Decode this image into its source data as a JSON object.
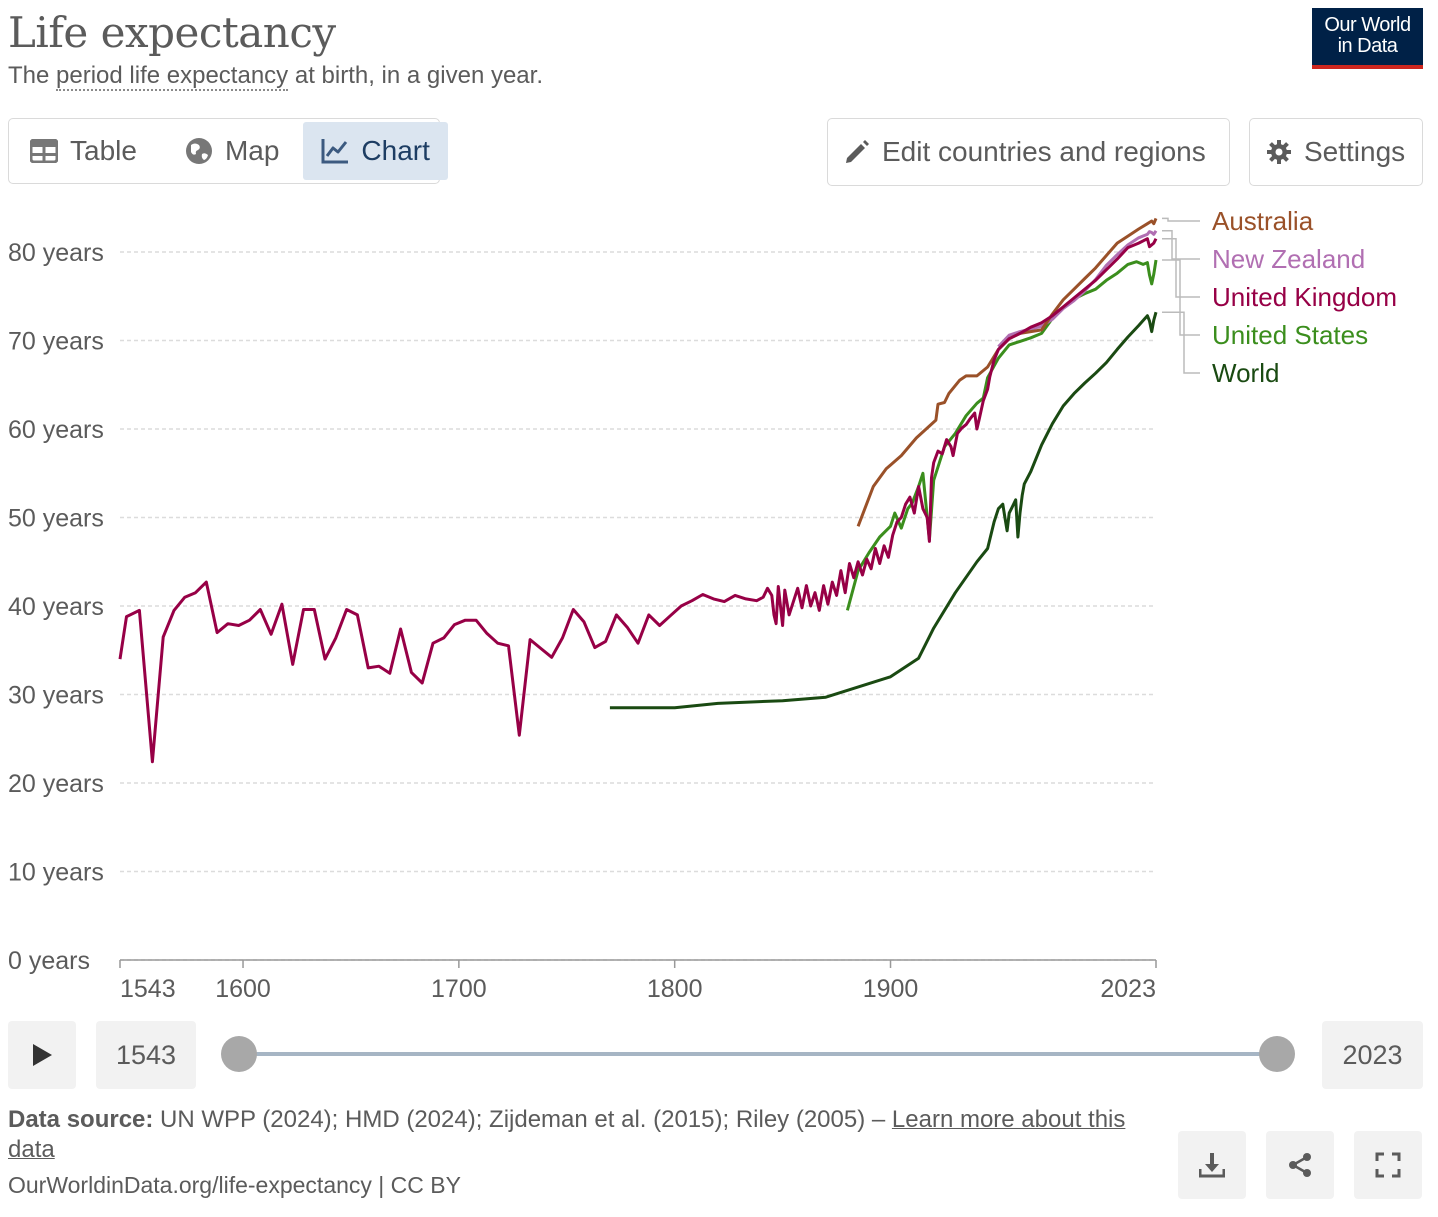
{
  "header": {
    "title": "Life expectancy",
    "subtitle_pre": "The ",
    "subtitle_link": "period life expectancy",
    "subtitle_post": " at birth, in a given year.",
    "logo_line1": "Our World",
    "logo_line2": "in Data"
  },
  "tabs": [
    {
      "label": "Table",
      "icon": "table-icon"
    },
    {
      "label": "Map",
      "icon": "globe-icon"
    },
    {
      "label": "Chart",
      "icon": "line-chart-icon",
      "active": true
    }
  ],
  "actions": {
    "edit_label": "Edit countries and regions",
    "settings_label": "Settings"
  },
  "timeline": {
    "start_year": "1543",
    "end_year": "2023",
    "play_icon": "play-icon"
  },
  "footer": {
    "source_label": "Data source:",
    "source_text": " UN WPP (2024); HMD (2024); Zijdeman et al. (2015); Riley (2005) – ",
    "learn_more": "Learn more about this data",
    "url": "OurWorldinData.org/life-expectancy | CC BY"
  },
  "colors": {
    "Australia": "#9a5129",
    "New Zealand": "#b16fb2",
    "United Kingdom": "#970046",
    "United States": "#3b8e1d",
    "World": "#1a4a12",
    "accent": "#dbe5f0",
    "brand": "#002147"
  },
  "chart_data": {
    "type": "line",
    "title": "",
    "xlabel": "",
    "ylabel": "",
    "xlim": [
      1543,
      2023
    ],
    "ylim": [
      0,
      80
    ],
    "y_ticks": [
      0,
      10,
      20,
      30,
      40,
      50,
      60,
      70,
      80
    ],
    "y_tick_labels": [
      "0 years",
      "10 years",
      "20 years",
      "30 years",
      "40 years",
      "50 years",
      "60 years",
      "70 years",
      "80 years"
    ],
    "x_tick_labels": [
      "1543",
      "1600",
      "1700",
      "1800",
      "1900",
      "2023"
    ],
    "x_ticks": [
      1543,
      1600,
      1700,
      1800,
      1900,
      2023
    ],
    "grid": "horizontal dashed",
    "legend": "right, end-of-line labels",
    "series": [
      {
        "name": "Australia",
        "points": [
          [
            1885,
            49
          ],
          [
            1892,
            53.5
          ],
          [
            1898,
            55.5
          ],
          [
            1905,
            57
          ],
          [
            1912,
            59
          ],
          [
            1921,
            61
          ],
          [
            1922,
            62.8
          ],
          [
            1925,
            63
          ],
          [
            1927,
            64
          ],
          [
            1932,
            65.5
          ],
          [
            1935,
            66
          ],
          [
            1940,
            66
          ],
          [
            1945,
            67
          ],
          [
            1950,
            69
          ],
          [
            1955,
            70.2
          ],
          [
            1960,
            70.8
          ],
          [
            1965,
            71
          ],
          [
            1970,
            71.2
          ],
          [
            1975,
            73
          ],
          [
            1980,
            74.6
          ],
          [
            1985,
            75.8
          ],
          [
            1990,
            77
          ],
          [
            1995,
            78.2
          ],
          [
            2000,
            79.6
          ],
          [
            2005,
            81
          ],
          [
            2010,
            81.8
          ],
          [
            2015,
            82.6
          ],
          [
            2019,
            83.2
          ],
          [
            2021,
            83.5
          ],
          [
            2022,
            83.2
          ],
          [
            2023,
            83.8
          ]
        ]
      },
      {
        "name": "New Zealand",
        "points": [
          [
            1950,
            69.3
          ],
          [
            1955,
            70.6
          ],
          [
            1960,
            71
          ],
          [
            1965,
            71.3
          ],
          [
            1970,
            71.6
          ],
          [
            1975,
            72.4
          ],
          [
            1980,
            73.6
          ],
          [
            1985,
            74.5
          ],
          [
            1990,
            75.6
          ],
          [
            1995,
            76.9
          ],
          [
            2000,
            78.5
          ],
          [
            2005,
            79.7
          ],
          [
            2010,
            80.8
          ],
          [
            2015,
            81.6
          ],
          [
            2019,
            82
          ],
          [
            2020,
            82.3
          ],
          [
            2021,
            82.2
          ],
          [
            2022,
            82
          ],
          [
            2023,
            82.4
          ]
        ]
      },
      {
        "name": "United Kingdom",
        "points": [
          [
            1543,
            34
          ],
          [
            1546,
            38.8
          ],
          [
            1552,
            39.5
          ],
          [
            1558,
            22.4
          ],
          [
            1563,
            36.5
          ],
          [
            1568,
            39.5
          ],
          [
            1573,
            41
          ],
          [
            1578,
            41.5
          ],
          [
            1583,
            42.7
          ],
          [
            1588,
            37
          ],
          [
            1593,
            38
          ],
          [
            1598,
            37.8
          ],
          [
            1603,
            38.4
          ],
          [
            1608,
            39.6
          ],
          [
            1613,
            36.8
          ],
          [
            1618,
            40.2
          ],
          [
            1623,
            33.4
          ],
          [
            1628,
            39.6
          ],
          [
            1633,
            39.6
          ],
          [
            1638,
            34
          ],
          [
            1643,
            36.4
          ],
          [
            1648,
            39.6
          ],
          [
            1653,
            39
          ],
          [
            1658,
            33
          ],
          [
            1663,
            33.2
          ],
          [
            1668,
            32.4
          ],
          [
            1673,
            37.4
          ],
          [
            1678,
            32.5
          ],
          [
            1683,
            31.3
          ],
          [
            1688,
            35.8
          ],
          [
            1693,
            36.4
          ],
          [
            1698,
            37.9
          ],
          [
            1703,
            38.4
          ],
          [
            1708,
            38.4
          ],
          [
            1713,
            36.9
          ],
          [
            1718,
            35.8
          ],
          [
            1723,
            35.5
          ],
          [
            1728,
            25.4
          ],
          [
            1733,
            36.2
          ],
          [
            1738,
            35.2
          ],
          [
            1743,
            34.2
          ],
          [
            1748,
            36.4
          ],
          [
            1753,
            39.6
          ],
          [
            1758,
            38.2
          ],
          [
            1763,
            35.3
          ],
          [
            1768,
            36
          ],
          [
            1773,
            39
          ],
          [
            1778,
            37.6
          ],
          [
            1783,
            35.8
          ],
          [
            1788,
            39
          ],
          [
            1793,
            37.8
          ],
          [
            1798,
            38.9
          ],
          [
            1803,
            40
          ],
          [
            1808,
            40.6
          ],
          [
            1813,
            41.3
          ],
          [
            1818,
            40.8
          ],
          [
            1823,
            40.5
          ],
          [
            1828,
            41.2
          ],
          [
            1833,
            40.8
          ],
          [
            1838,
            40.6
          ],
          [
            1841,
            41
          ],
          [
            1843,
            42
          ],
          [
            1845,
            41.2
          ],
          [
            1846,
            39
          ],
          [
            1847,
            38
          ],
          [
            1848,
            42.2
          ],
          [
            1850,
            37.8
          ],
          [
            1851,
            41.8
          ],
          [
            1853,
            39
          ],
          [
            1855,
            40.5
          ],
          [
            1857,
            42
          ],
          [
            1859,
            39.8
          ],
          [
            1861,
            42.3
          ],
          [
            1863,
            40
          ],
          [
            1865,
            41.5
          ],
          [
            1867,
            39.5
          ],
          [
            1869,
            42.3
          ],
          [
            1871,
            40.2
          ],
          [
            1873,
            42.7
          ],
          [
            1875,
            41.2
          ],
          [
            1877,
            44
          ],
          [
            1879,
            41.5
          ],
          [
            1881,
            44.8
          ],
          [
            1883,
            43.2
          ],
          [
            1885,
            45
          ],
          [
            1887,
            43.5
          ],
          [
            1889,
            45.3
          ],
          [
            1891,
            44.2
          ],
          [
            1893,
            46.5
          ],
          [
            1895,
            44.8
          ],
          [
            1897,
            46.8
          ],
          [
            1899,
            45.5
          ],
          [
            1901,
            48
          ],
          [
            1903,
            49.5
          ],
          [
            1905,
            50
          ],
          [
            1907,
            51.5
          ],
          [
            1909,
            52.3
          ],
          [
            1911,
            50.5
          ],
          [
            1913,
            53.5
          ],
          [
            1915,
            51
          ],
          [
            1917,
            50
          ],
          [
            1918,
            47.3
          ],
          [
            1919,
            54.5
          ],
          [
            1920,
            56.2
          ],
          [
            1922,
            57.5
          ],
          [
            1924,
            57.2
          ],
          [
            1926,
            58.8
          ],
          [
            1928,
            58
          ],
          [
            1929,
            57
          ],
          [
            1931,
            59.5
          ],
          [
            1933,
            60.1
          ],
          [
            1935,
            60.5
          ],
          [
            1937,
            61.2
          ],
          [
            1939,
            61.8
          ],
          [
            1940,
            60
          ],
          [
            1941,
            61
          ],
          [
            1943,
            63.2
          ],
          [
            1945,
            64.5
          ],
          [
            1946,
            65.9
          ],
          [
            1948,
            67.8
          ],
          [
            1950,
            69
          ],
          [
            1955,
            70.2
          ],
          [
            1960,
            70.8
          ],
          [
            1965,
            71.5
          ],
          [
            1970,
            72
          ],
          [
            1975,
            72.8
          ],
          [
            1980,
            73.8
          ],
          [
            1985,
            74.8
          ],
          [
            1990,
            75.8
          ],
          [
            1995,
            76.8
          ],
          [
            2000,
            78
          ],
          [
            2005,
            79.2
          ],
          [
            2010,
            80.5
          ],
          [
            2015,
            81
          ],
          [
            2019,
            81.5
          ],
          [
            2020,
            80.6
          ],
          [
            2021,
            80.8
          ],
          [
            2022,
            81
          ],
          [
            2023,
            81.5
          ]
        ]
      },
      {
        "name": "United States",
        "points": [
          [
            1880,
            39.5
          ],
          [
            1885,
            44
          ],
          [
            1890,
            46
          ],
          [
            1895,
            47.8
          ],
          [
            1900,
            49
          ],
          [
            1902,
            50.5
          ],
          [
            1905,
            48.8
          ],
          [
            1908,
            51
          ],
          [
            1910,
            51.6
          ],
          [
            1913,
            53.5
          ],
          [
            1915,
            55
          ],
          [
            1918,
            47.5
          ],
          [
            1920,
            54.2
          ],
          [
            1925,
            58
          ],
          [
            1930,
            59.5
          ],
          [
            1935,
            61.5
          ],
          [
            1940,
            62.9
          ],
          [
            1943,
            63.5
          ],
          [
            1945,
            65.8
          ],
          [
            1950,
            68
          ],
          [
            1955,
            69.5
          ],
          [
            1960,
            69.9
          ],
          [
            1965,
            70.3
          ],
          [
            1970,
            70.8
          ],
          [
            1975,
            72.5
          ],
          [
            1980,
            73.7
          ],
          [
            1985,
            74.7
          ],
          [
            1990,
            75.3
          ],
          [
            1995,
            75.8
          ],
          [
            2000,
            76.8
          ],
          [
            2005,
            77.6
          ],
          [
            2010,
            78.6
          ],
          [
            2014,
            78.9
          ],
          [
            2017,
            78.6
          ],
          [
            2019,
            78.8
          ],
          [
            2020,
            77.4
          ],
          [
            2021,
            76.4
          ],
          [
            2022,
            77.5
          ],
          [
            2023,
            79.1
          ]
        ]
      },
      {
        "name": "World",
        "points": [
          [
            1770,
            28.5
          ],
          [
            1800,
            28.5
          ],
          [
            1820,
            29
          ],
          [
            1850,
            29.3
          ],
          [
            1870,
            29.7
          ],
          [
            1900,
            32
          ],
          [
            1913,
            34.1
          ],
          [
            1920,
            37.5
          ],
          [
            1930,
            41.5
          ],
          [
            1940,
            45
          ],
          [
            1945,
            46.5
          ],
          [
            1948,
            49.5
          ],
          [
            1950,
            51
          ],
          [
            1952,
            51.5
          ],
          [
            1953,
            50
          ],
          [
            1954,
            48.5
          ],
          [
            1955,
            50.5
          ],
          [
            1956,
            51
          ],
          [
            1957,
            51.5
          ],
          [
            1958,
            52
          ],
          [
            1959,
            47.8
          ],
          [
            1960,
            50.5
          ],
          [
            1961,
            52.5
          ],
          [
            1962,
            53.8
          ],
          [
            1965,
            55.2
          ],
          [
            1970,
            58.2
          ],
          [
            1975,
            60.6
          ],
          [
            1980,
            62.6
          ],
          [
            1985,
            64
          ],
          [
            1990,
            65.2
          ],
          [
            1995,
            66.3
          ],
          [
            2000,
            67.5
          ],
          [
            2005,
            69
          ],
          [
            2010,
            70.4
          ],
          [
            2015,
            71.7
          ],
          [
            2019,
            72.8
          ],
          [
            2020,
            72.2
          ],
          [
            2021,
            71
          ],
          [
            2022,
            72.3
          ],
          [
            2023,
            73.2
          ]
        ]
      }
    ],
    "legend_labels": [
      "Australia",
      "New Zealand",
      "United Kingdom",
      "United States",
      "World"
    ]
  }
}
